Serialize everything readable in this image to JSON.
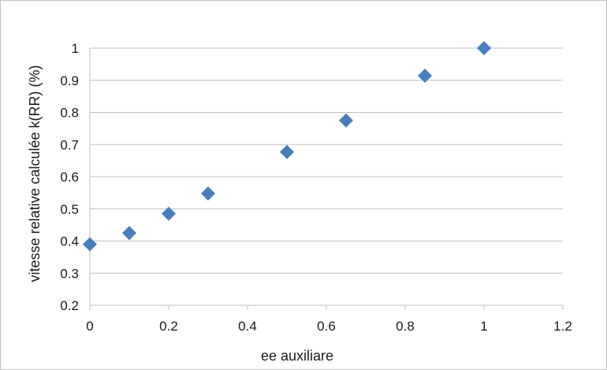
{
  "chart_data": {
    "type": "scatter",
    "title": "",
    "xlabel": "ee auxiliare",
    "ylabel": "vitesse relative calculée k(RR) (%)",
    "xlim": [
      0,
      1.2
    ],
    "ylim": [
      0.2,
      1.0
    ],
    "x_ticks": [
      "0",
      "0.2",
      "0.4",
      "0.6",
      "0.8",
      "1",
      "1.2"
    ],
    "y_ticks": [
      "0.2",
      "0.3",
      "0.4",
      "0.5",
      "0.6",
      "0.7",
      "0.8",
      "0.9",
      "1"
    ],
    "grid": "horizontal",
    "legend": "none",
    "marker": "diamond",
    "marker_color": "#4a7ebb",
    "grid_color": "#bfbfbf",
    "series": [
      {
        "x": [
          0,
          0.1,
          0.2,
          0.3,
          0.5,
          0.65,
          0.85,
          1.0
        ],
        "y": [
          0.39,
          0.425,
          0.485,
          0.548,
          0.677,
          0.775,
          0.914,
          1.0
        ]
      }
    ]
  }
}
